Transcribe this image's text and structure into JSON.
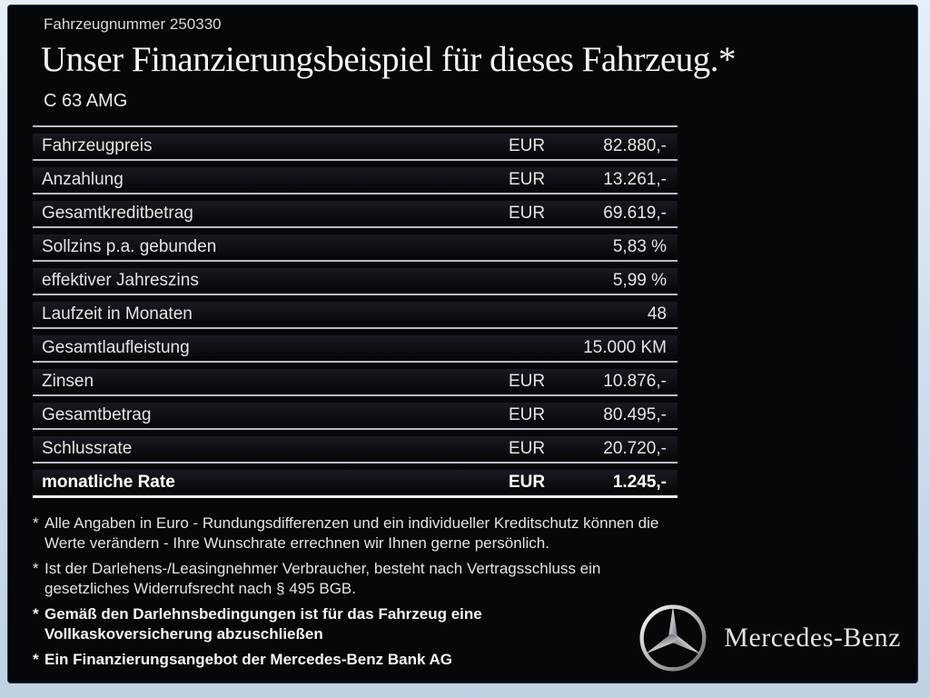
{
  "header": {
    "vehicle_number": "Fahrzeugnummer 250330",
    "title": "Unser Finanzierungsbeispiel für dieses Fahrzeug.*",
    "model": "C 63 AMG"
  },
  "table": {
    "rows": [
      {
        "label": "Fahrzeugpreis",
        "currency": "EUR",
        "value": "82.880,-",
        "bold": false
      },
      {
        "label": "Anzahlung",
        "currency": "EUR",
        "value": "13.261,-",
        "bold": false
      },
      {
        "label": "Gesamtkreditbetrag",
        "currency": "EUR",
        "value": "69.619,-",
        "bold": false
      },
      {
        "label": "Sollzins p.a. gebunden",
        "currency": "",
        "value": "5,83 %",
        "bold": false
      },
      {
        "label": "effektiver Jahreszins",
        "currency": "",
        "value": "5,99 %",
        "bold": false
      },
      {
        "label": "Laufzeit in Monaten",
        "currency": "",
        "value": "48",
        "bold": false
      },
      {
        "label": "Gesamtlaufleistung",
        "currency": "",
        "value": "15.000 KM",
        "bold": false
      },
      {
        "label": "Zinsen",
        "currency": "EUR",
        "value": "10.876,-",
        "bold": false
      },
      {
        "label": "Gesamtbetrag",
        "currency": "EUR",
        "value": "80.495,-",
        "bold": false
      },
      {
        "label": "Schlussrate",
        "currency": "EUR",
        "value": "20.720,-",
        "bold": false
      },
      {
        "label": "monatliche Rate",
        "currency": "EUR",
        "value": "1.245,-",
        "bold": true
      }
    ]
  },
  "footnotes": [
    {
      "marker": "*",
      "bold": false,
      "lines": [
        "Alle Angaben in Euro - Rundungsdifferenzen und ein individueller Kreditschutz können die",
        "Werte verändern - Ihre Wunschrate errechnen wir Ihnen gerne persönlich."
      ]
    },
    {
      "marker": "*",
      "bold": false,
      "lines": [
        "Ist der Darlehens-/Leasingnehmer Verbraucher, besteht nach Vertragsschluss ein",
        "gesetzliches Widerrufsrecht nach § 495 BGB."
      ]
    },
    {
      "marker": "*",
      "bold": true,
      "lines": [
        "Gemäß den Darlehnsbedingungen ist für das Fahrzeug eine",
        "Vollkaskoversicherung abzuschließen"
      ]
    },
    {
      "marker": "*",
      "bold": true,
      "lines": [
        "Ein Finanzierungsangebot der Mercedes-Benz Bank AG"
      ]
    }
  ],
  "brand": {
    "logo": "mercedes-star-icon",
    "name": "Mercedes-Benz"
  },
  "colors": {
    "content_background": "#060709",
    "frame": "#cddceb",
    "separator_line": "#b7bbc8",
    "text": "#e4e4e4",
    "highlight_line": "#eef0f4"
  }
}
